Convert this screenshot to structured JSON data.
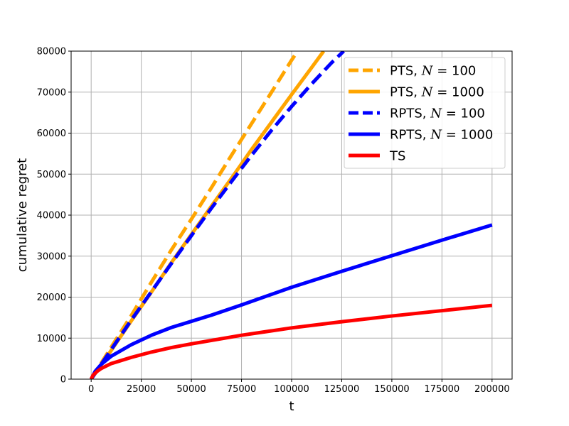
{
  "chart_data": {
    "type": "line",
    "title": "",
    "xlabel": "t",
    "ylabel": "cumulative regret",
    "xlim": [
      -10000,
      210000
    ],
    "ylim": [
      0,
      80000
    ],
    "xticks": [
      0,
      25000,
      50000,
      75000,
      100000,
      125000,
      150000,
      175000,
      200000
    ],
    "yticks": [
      0,
      10000,
      20000,
      30000,
      40000,
      50000,
      60000,
      70000,
      80000
    ],
    "grid": true,
    "legend_position": "top-right",
    "series": [
      {
        "name": "PTS, N = 100",
        "legend": {
          "prefix": "PTS, ",
          "var": "N",
          "rest": " = 100"
        },
        "color": "#ffa500",
        "dash": "dashed",
        "points": [
          [
            0,
            0
          ],
          [
            5000,
            3900
          ],
          [
            10000,
            7800
          ],
          [
            20000,
            15500
          ],
          [
            30000,
            23600
          ],
          [
            40000,
            31500
          ],
          [
            50000,
            39000
          ],
          [
            60000,
            46700
          ],
          [
            70000,
            54600
          ],
          [
            80000,
            62300
          ],
          [
            90000,
            70000
          ],
          [
            100000,
            77800
          ],
          [
            103000,
            80000
          ]
        ]
      },
      {
        "name": "PTS, N = 1000",
        "legend": {
          "prefix": "PTS, ",
          "var": "N",
          "rest": " = 1000"
        },
        "color": "#ffa500",
        "dash": "solid",
        "points": [
          [
            0,
            0
          ],
          [
            5000,
            3500
          ],
          [
            10000,
            7000
          ],
          [
            20000,
            14200
          ],
          [
            30000,
            21200
          ],
          [
            40000,
            28400
          ],
          [
            50000,
            35300
          ],
          [
            60000,
            42200
          ],
          [
            70000,
            49000
          ],
          [
            80000,
            56000
          ],
          [
            90000,
            62700
          ],
          [
            100000,
            69400
          ],
          [
            110000,
            76000
          ],
          [
            116000,
            80000
          ]
        ]
      },
      {
        "name": "RPTS, N = 100",
        "legend": {
          "prefix": "RPTS, ",
          "var": "N",
          "rest": " = 100"
        },
        "color": "#0000ff",
        "dash": "dashed",
        "points": [
          [
            0,
            0
          ],
          [
            5000,
            3600
          ],
          [
            10000,
            7200
          ],
          [
            20000,
            14400
          ],
          [
            30000,
            21300
          ],
          [
            40000,
            28200
          ],
          [
            50000,
            35000
          ],
          [
            60000,
            41700
          ],
          [
            70000,
            48200
          ],
          [
            80000,
            54600
          ],
          [
            90000,
            60700
          ],
          [
            100000,
            66500
          ],
          [
            110000,
            72000
          ],
          [
            120000,
            77200
          ],
          [
            126000,
            80000
          ]
        ]
      },
      {
        "name": "RPTS, N = 1000",
        "legend": {
          "prefix": "RPTS, ",
          "var": "N",
          "rest": " = 1000"
        },
        "color": "#0000ff",
        "dash": "solid",
        "points": [
          [
            0,
            0
          ],
          [
            2000,
            1900
          ],
          [
            5000,
            3600
          ],
          [
            10000,
            5600
          ],
          [
            20000,
            8400
          ],
          [
            30000,
            10700
          ],
          [
            40000,
            12600
          ],
          [
            50000,
            14100
          ],
          [
            60000,
            15600
          ],
          [
            75000,
            18100
          ],
          [
            100000,
            22400
          ],
          [
            125000,
            26300
          ],
          [
            150000,
            30100
          ],
          [
            175000,
            33900
          ],
          [
            200000,
            37600
          ]
        ]
      },
      {
        "name": "TS",
        "legend": {
          "prefix": "TS",
          "var": "",
          "rest": ""
        },
        "color": "#ff0000",
        "dash": "solid",
        "points": [
          [
            0,
            0
          ],
          [
            1000,
            1000
          ],
          [
            3000,
            1900
          ],
          [
            5000,
            2600
          ],
          [
            10000,
            3800
          ],
          [
            20000,
            5300
          ],
          [
            30000,
            6600
          ],
          [
            40000,
            7700
          ],
          [
            50000,
            8600
          ],
          [
            75000,
            10700
          ],
          [
            100000,
            12500
          ],
          [
            125000,
            14000
          ],
          [
            150000,
            15400
          ],
          [
            175000,
            16700
          ],
          [
            200000,
            18000
          ]
        ]
      }
    ]
  }
}
